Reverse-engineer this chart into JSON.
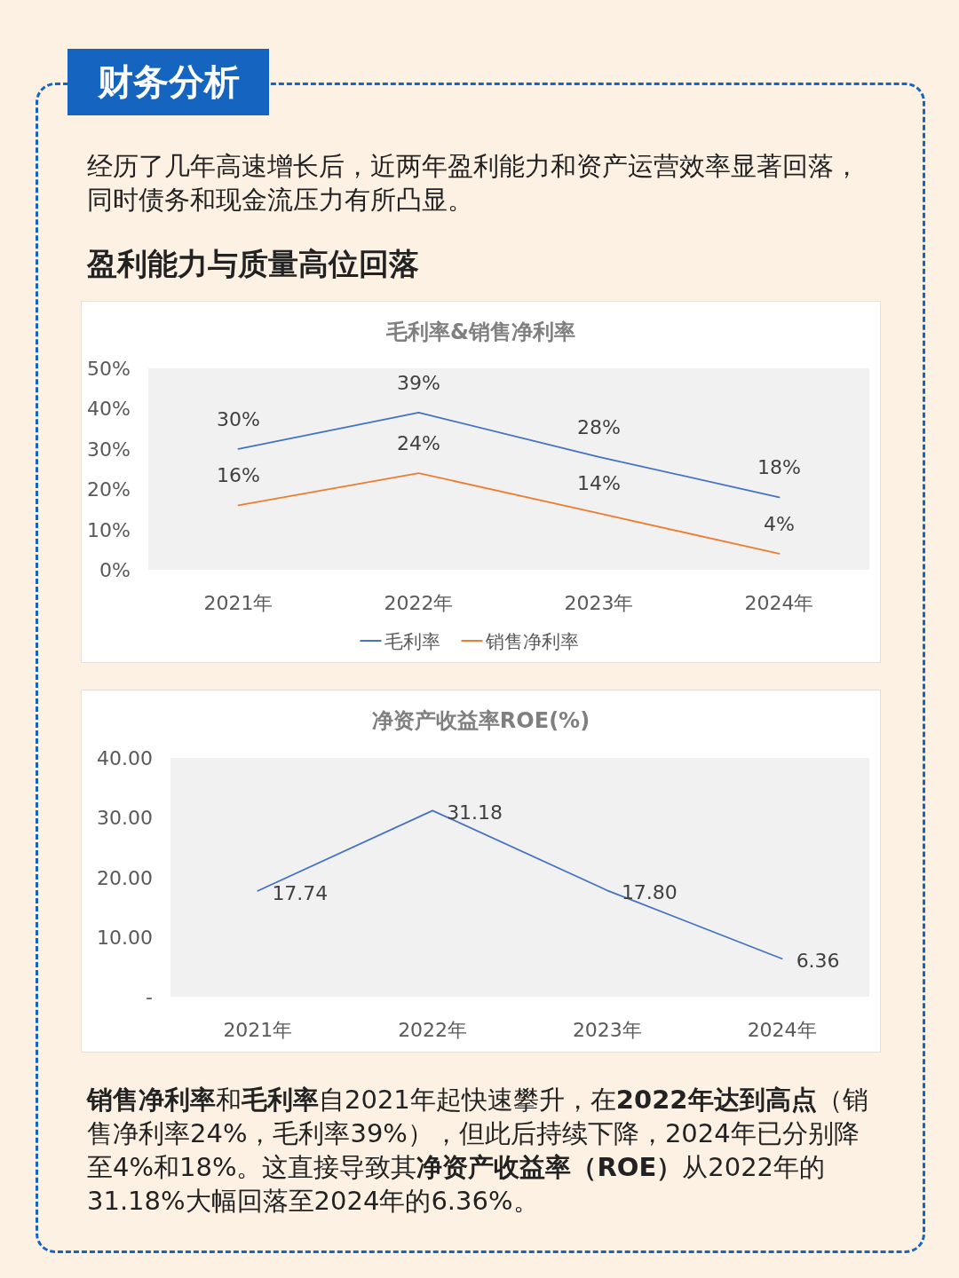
{
  "chart_data": [
    {
      "type": "line",
      "title": "毛利率&销售净利率",
      "annotations": [
        "财务分析",
        "经历了几年高速增长后，近两年盈利能力和资产运营效率显著回落，同时债务和现金流压力有所凸显。",
        "盈利能力与质量高位回落"
      ],
      "categories": [
        "2021年",
        "2022年",
        "2023年",
        "2024年"
      ],
      "series": [
        {
          "name": "毛利率",
          "color": "#4472c4",
          "values": [
            30,
            39,
            28,
            18
          ],
          "value_labels": [
            "30%",
            "39%",
            "28%",
            "18%"
          ]
        },
        {
          "name": "销售净利率",
          "color": "#ed7d31",
          "values": [
            16,
            24,
            14,
            4
          ],
          "value_labels": [
            "16%",
            "24%",
            "14%",
            "4%"
          ]
        }
      ],
      "ylim": [
        0,
        50
      ],
      "yticks": [
        {
          "value": 0,
          "label": "0%"
        },
        {
          "value": 10,
          "label": "10%"
        },
        {
          "value": 20,
          "label": "20%"
        },
        {
          "value": 30,
          "label": "30%"
        },
        {
          "value": 40,
          "label": "40%"
        },
        {
          "value": 50,
          "label": "50%"
        }
      ],
      "legend": "bottom"
    },
    {
      "type": "line",
      "title": "净资产收益率ROE(%)",
      "annotations": [
        "**销售净利率**和**毛利率**自2021年起快速攀升，在**2022年达到高点**（销售净利率24%，毛利率39%），但此后持续下降，2024年已分别降至4%和18%。这直接导致其**净资产收益率（ROE）**从2022年的31.18%大幅回落至2024年的6.36%。"
      ],
      "categories": [
        "2021年",
        "2022年",
        "2023年",
        "2024年"
      ],
      "series": [
        {
          "color": "#4472c4",
          "values": [
            17.74,
            31.18,
            17.8,
            6.36
          ],
          "value_labels": [
            "17.74",
            "31.18",
            "17.80",
            "6.36"
          ]
        }
      ],
      "ylim": [
        0,
        40
      ],
      "yticks": [
        {
          "value": 0,
          "label": "-"
        },
        {
          "value": 10,
          "label": "10.00"
        },
        {
          "value": 20,
          "label": "20.00"
        },
        {
          "value": 30,
          "label": "30.00"
        },
        {
          "value": 40,
          "label": "40.00"
        }
      ]
    }
  ]
}
